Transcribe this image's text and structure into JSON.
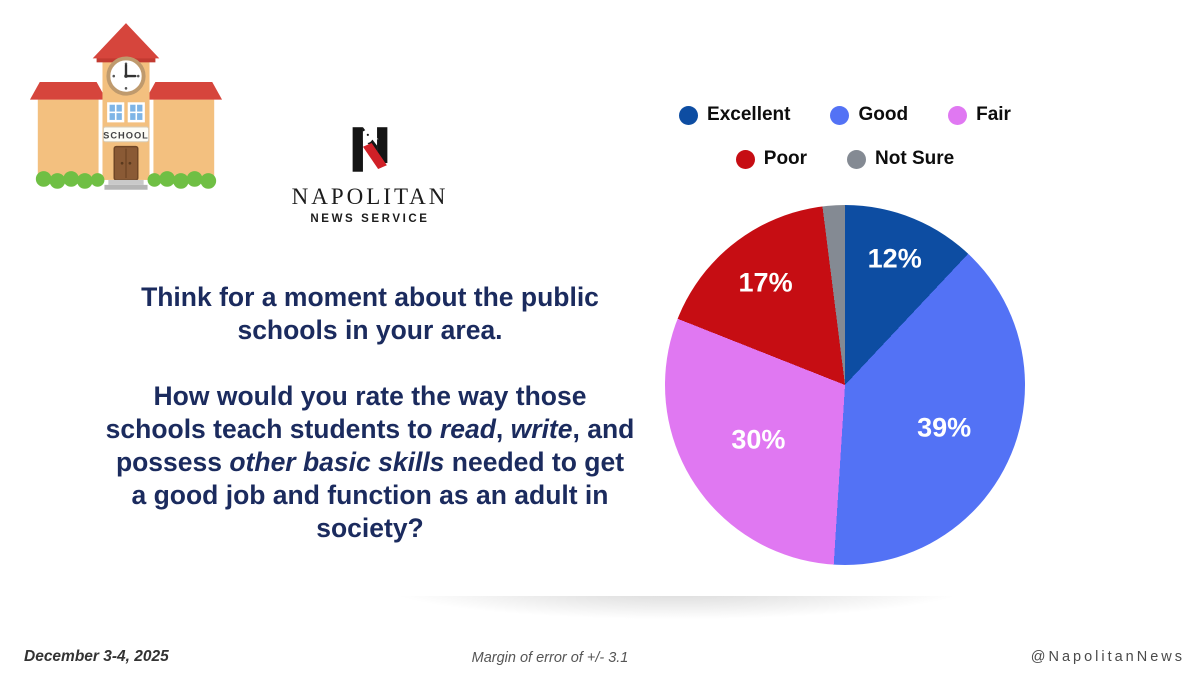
{
  "branding": {
    "name": "NAPOLITAN",
    "subtitle": "NEWS SERVICE"
  },
  "school": {
    "sign": "SCHOOL"
  },
  "question": {
    "para1": "Think for a moment about the public schools in your area.",
    "para2": [
      {
        "text": "How would you rate the way those schools teach students to ",
        "italic": false
      },
      {
        "text": "read",
        "italic": true
      },
      {
        "text": ", ",
        "italic": false
      },
      {
        "text": "write",
        "italic": true
      },
      {
        "text": ", and possess ",
        "italic": false
      },
      {
        "text": "other basic skills",
        "italic": true
      },
      {
        "text": " needed to get a good job and function as an adult in society?",
        "italic": false
      }
    ]
  },
  "chart_data": {
    "type": "pie",
    "categories": [
      "Excellent",
      "Good",
      "Fair",
      "Poor",
      "Not Sure"
    ],
    "values": [
      12,
      39,
      30,
      17,
      2
    ],
    "labels": [
      "12%",
      "39%",
      "30%",
      "17%",
      ""
    ],
    "colors": [
      "#0d4da2",
      "#5372f5",
      "#e078f2",
      "#c60d13",
      "#848a93"
    ],
    "start_angle_deg": 0,
    "direction": "clockwise",
    "legend_position": "top",
    "legend_rows": [
      3,
      2
    ],
    "label_color": "#ffffff"
  },
  "footer": {
    "date": "December 3-4, 2025",
    "margin_note": "Margin of error of +/- 3.1",
    "social_handle": "@NapolitanNews"
  }
}
